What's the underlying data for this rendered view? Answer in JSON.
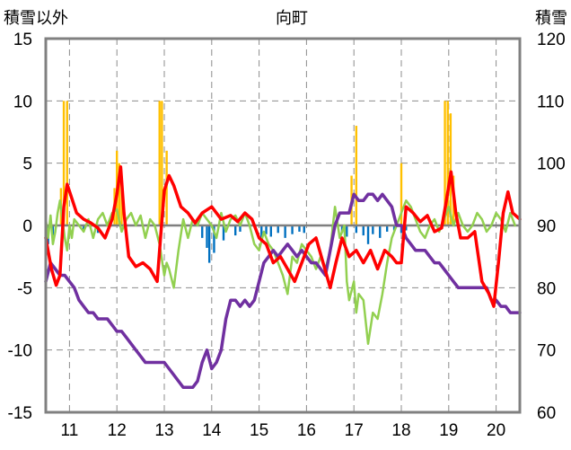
{
  "chart_data": {
    "type": "bar+line",
    "title": "向町",
    "left_axis": {
      "label": "積雪以外",
      "ylim": [
        -15,
        15
      ],
      "ticks": [
        "15",
        "10",
        "5",
        "0",
        "-5",
        "-10",
        "-15"
      ]
    },
    "right_axis": {
      "label": "積雪",
      "ylim": [
        60,
        120
      ],
      "ticks": [
        "120",
        "110",
        "100",
        "90",
        "80",
        "70",
        "60"
      ]
    },
    "x_axis": {
      "xlim": [
        10.5,
        20.5
      ],
      "tick_labels": [
        "11",
        "12",
        "13",
        "14",
        "15",
        "16",
        "17",
        "18",
        "19",
        "20"
      ],
      "tick_values": [
        11,
        12,
        13,
        14,
        15,
        16,
        17,
        18,
        19,
        20
      ]
    },
    "grid": "dashed vertical and horizontal",
    "colors": {
      "red": "#ff0000",
      "green": "#92d050",
      "purple": "#7030a0",
      "orange": "#ffc000",
      "blue": "#0070c0",
      "baseline": "#7f7f7f"
    },
    "series": [
      {
        "color": "#ffc000",
        "axis": "left",
        "kind": "bar",
        "x": [
          10.82,
          10.88,
          10.95,
          11.95,
          12.0,
          12.05,
          12.1,
          12.9,
          12.95,
          13.05,
          16.95,
          17.05,
          18.0,
          18.92,
          18.98,
          19.04,
          19.1
        ],
        "values": [
          3,
          10,
          10,
          3,
          6,
          5,
          4,
          10,
          10,
          6,
          4,
          8,
          5,
          10,
          10,
          9,
          4
        ]
      },
      {
        "color": "#0070c0",
        "axis": "left",
        "kind": "bar",
        "x": [
          10.55,
          10.65,
          11.3,
          11.6,
          13.8,
          13.9,
          13.95,
          14.05,
          14.25,
          14.5,
          14.6,
          15.05,
          15.15,
          15.25,
          15.4,
          15.55,
          15.7,
          15.85,
          15.95,
          16.55,
          16.75,
          16.85,
          17.05,
          17.2,
          17.3,
          17.4,
          17.55,
          17.7,
          17.85,
          18.0,
          18.1
        ],
        "values": [
          -1.5,
          -0.8,
          -0.4,
          -0.6,
          -1.0,
          -1.8,
          -3.0,
          -2.2,
          -1.2,
          -0.8,
          -0.5,
          -1.0,
          -0.7,
          -0.9,
          -0.6,
          -1.0,
          -0.7,
          -0.5,
          -0.6,
          -1.0,
          -0.6,
          -0.9,
          -0.6,
          -0.8,
          -1.5,
          -0.7,
          -1.0,
          -0.5,
          -0.4,
          -0.6,
          -0.4
        ]
      },
      {
        "color": "#ff0000",
        "axis": "left",
        "kind": "line",
        "x": [
          10.5,
          10.62,
          10.72,
          10.8,
          10.88,
          10.95,
          11.02,
          11.15,
          11.3,
          11.45,
          11.6,
          11.75,
          11.9,
          12.0,
          12.08,
          12.15,
          12.25,
          12.4,
          12.55,
          12.7,
          12.85,
          12.92,
          13.0,
          13.1,
          13.2,
          13.35,
          13.5,
          13.65,
          13.8,
          14.0,
          14.2,
          14.4,
          14.55,
          14.7,
          14.85,
          15.0,
          15.15,
          15.3,
          15.45,
          15.6,
          15.75,
          15.9,
          16.05,
          16.2,
          16.35,
          16.5,
          16.62,
          16.75,
          16.9,
          17.05,
          17.2,
          17.35,
          17.5,
          17.65,
          17.8,
          17.9,
          18.0,
          18.1,
          18.25,
          18.4,
          18.55,
          18.7,
          18.85,
          18.95,
          19.05,
          19.15,
          19.25,
          19.4,
          19.55,
          19.7,
          19.85,
          19.95,
          20.05,
          20.15,
          20.25,
          20.35,
          20.5
        ],
        "values": [
          -1.0,
          -3.5,
          -4.8,
          -4.0,
          1.5,
          3.3,
          2.5,
          1.0,
          0.5,
          0.2,
          -0.2,
          -1.0,
          0.5,
          2.5,
          4.7,
          1.0,
          -2.5,
          -3.3,
          -3.0,
          -3.5,
          -4.5,
          -1.0,
          2.8,
          4.0,
          3.2,
          1.5,
          1.0,
          0.2,
          1.0,
          1.5,
          0.5,
          0.8,
          0.3,
          1.0,
          0.5,
          -1.0,
          -1.5,
          -3.0,
          -2.5,
          -3.5,
          -4.5,
          -3.0,
          -1.5,
          -1.0,
          -3.0,
          -5.0,
          -3.0,
          -1.0,
          -2.5,
          -2.0,
          -3.0,
          -2.0,
          -3.5,
          -2.0,
          -2.5,
          -3.0,
          -3.0,
          1.5,
          1.0,
          0.3,
          0.8,
          -0.5,
          -0.2,
          2.0,
          4.3,
          1.0,
          -1.0,
          -1.0,
          -0.5,
          -4.5,
          -5.5,
          -6.5,
          -3.0,
          1.0,
          2.7,
          1.0,
          0.5
        ]
      },
      {
        "color": "#92d050",
        "axis": "left",
        "kind": "line",
        "x": [
          10.5,
          10.55,
          10.6,
          10.65,
          10.7,
          10.75,
          10.8,
          10.85,
          10.9,
          10.95,
          11.0,
          11.05,
          11.1,
          11.2,
          11.3,
          11.4,
          11.5,
          11.6,
          11.7,
          11.8,
          11.9,
          12.0,
          12.1,
          12.2,
          12.3,
          12.4,
          12.5,
          12.6,
          12.7,
          12.8,
          12.9,
          13.0,
          13.05,
          13.1,
          13.2,
          13.3,
          13.4,
          13.5,
          13.6,
          13.7,
          13.8,
          13.9,
          14.0,
          14.1,
          14.2,
          14.3,
          14.4,
          14.5,
          14.6,
          14.7,
          14.8,
          14.9,
          15.0,
          15.1,
          15.2,
          15.3,
          15.4,
          15.5,
          15.6,
          15.7,
          15.8,
          15.9,
          16.0,
          16.1,
          16.2,
          16.3,
          16.4,
          16.5,
          16.6,
          16.7,
          16.8,
          16.85,
          16.9,
          17.0,
          17.05,
          17.1,
          17.2,
          17.3,
          17.4,
          17.5,
          17.6,
          17.7,
          17.8,
          17.9,
          18.0,
          18.1,
          18.2,
          18.3,
          18.4,
          18.5,
          18.6,
          18.7,
          18.8,
          18.9,
          19.0,
          19.1,
          19.2,
          19.3,
          19.4,
          19.5,
          19.6,
          19.7,
          19.8,
          19.9,
          20.0,
          20.1,
          20.2,
          20.3,
          20.4
        ],
        "values": [
          0.5,
          -1.0,
          0.8,
          -1.5,
          -0.5,
          1.0,
          2.0,
          0.5,
          -1.0,
          -2.0,
          0.0,
          -1.0,
          0.5,
          0.0,
          -0.5,
          0.5,
          -1.0,
          0.5,
          1.0,
          0.0,
          1.0,
          1.3,
          -0.5,
          0.5,
          1.0,
          0.0,
          0.8,
          -1.0,
          0.5,
          0.0,
          -1.5,
          -4.0,
          -3.0,
          -3.5,
          -5.0,
          -2.0,
          0.5,
          -1.0,
          0.5,
          0.0,
          1.0,
          0.5,
          0.0,
          -1.0,
          1.0,
          -0.5,
          0.5,
          0.8,
          0.0,
          1.0,
          0.0,
          -1.5,
          -2.0,
          -0.5,
          -1.5,
          -2.0,
          -3.0,
          -4.0,
          -5.5,
          -2.5,
          -3.0,
          -1.5,
          -2.0,
          -2.5,
          -3.5,
          -2.5,
          -3.5,
          -2.0,
          1.5,
          -1.0,
          0.0,
          -4.5,
          -6.0,
          -4.5,
          -7.0,
          -5.5,
          -6.0,
          -9.5,
          -7.0,
          -7.5,
          -5.5,
          -3.0,
          -1.0,
          0.0,
          1.0,
          2.0,
          1.5,
          0.5,
          -0.5,
          -1.0,
          0.0,
          0.5,
          -0.5,
          0.5,
          1.5,
          0.0,
          1.0,
          0.0,
          -0.5,
          0.0,
          1.0,
          0.5,
          -0.5,
          0.0,
          1.0,
          0.5,
          -0.5,
          1.0,
          0.0
        ]
      },
      {
        "color": "#7030a0",
        "axis": "right",
        "kind": "line",
        "x": [
          10.5,
          10.6,
          10.7,
          10.8,
          10.9,
          11.0,
          11.1,
          11.2,
          11.3,
          11.4,
          11.5,
          11.6,
          11.7,
          11.8,
          11.9,
          12.0,
          12.1,
          12.2,
          12.3,
          12.4,
          12.5,
          12.6,
          12.7,
          12.8,
          12.9,
          13.0,
          13.1,
          13.2,
          13.3,
          13.4,
          13.5,
          13.6,
          13.7,
          13.8,
          13.9,
          14.0,
          14.1,
          14.2,
          14.3,
          14.4,
          14.5,
          14.6,
          14.7,
          14.8,
          14.9,
          15.0,
          15.1,
          15.2,
          15.3,
          15.4,
          15.5,
          15.6,
          15.7,
          15.8,
          15.9,
          16.0,
          16.1,
          16.2,
          16.3,
          16.4,
          16.5,
          16.6,
          16.7,
          16.8,
          16.9,
          17.0,
          17.1,
          17.2,
          17.3,
          17.4,
          17.5,
          17.6,
          17.7,
          17.8,
          17.9,
          18.0,
          18.1,
          18.2,
          18.3,
          18.4,
          18.5,
          18.6,
          18.7,
          18.8,
          18.9,
          19.0,
          19.1,
          19.2,
          19.3,
          19.4,
          19.5,
          19.6,
          19.7,
          19.8,
          19.9,
          20.0,
          20.1,
          20.2,
          20.3,
          20.4,
          20.5
        ],
        "values": [
          81,
          84,
          83,
          82,
          82,
          81,
          80,
          78,
          77,
          76,
          76,
          75,
          75,
          75,
          74,
          73,
          73,
          72,
          71,
          70,
          69,
          68,
          68,
          68,
          68,
          68,
          67,
          66,
          65,
          64,
          64,
          64,
          65,
          68,
          70,
          67,
          68,
          70,
          75,
          78,
          78,
          77,
          78,
          77,
          78,
          81,
          84,
          85,
          86,
          85,
          86,
          87,
          86,
          85,
          86,
          85,
          84,
          84,
          83,
          82,
          86,
          90,
          92,
          92,
          92,
          95,
          94,
          94,
          95,
          95,
          94,
          95,
          94,
          93,
          90,
          90,
          88,
          87,
          86,
          86,
          86,
          85,
          84,
          84,
          83,
          82,
          81,
          80,
          80,
          80,
          80,
          80,
          80,
          80,
          78,
          78,
          77,
          77,
          76,
          76,
          76
        ]
      }
    ]
  }
}
